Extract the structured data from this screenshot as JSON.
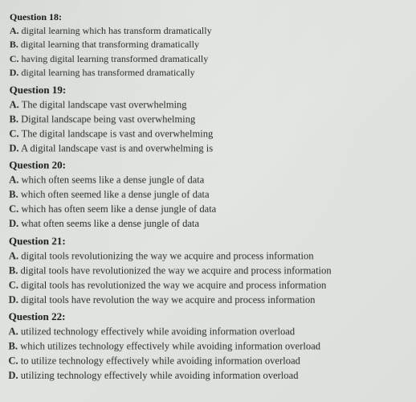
{
  "questions": [
    {
      "number": "Question 18:",
      "options": [
        {
          "label": "A.",
          "text": "digital learning which has transform dramatically"
        },
        {
          "label": "B.",
          "text": "digital learning that transforming dramatically"
        },
        {
          "label": "C.",
          "text": "having digital learning transformed dramatically"
        },
        {
          "label": "D.",
          "text": "digital learning has transformed dramatically"
        }
      ]
    },
    {
      "number": "Question 19:",
      "options": [
        {
          "label": "A.",
          "text": "The digital landscape vast overwhelming"
        },
        {
          "label": "B.",
          "text": "Digital landscape being vast overwhelming"
        },
        {
          "label": "C.",
          "text": "The digital landscape is vast and overwhelming"
        },
        {
          "label": "D.",
          "text": "A digital landscape vast is and overwhelming is"
        }
      ]
    },
    {
      "number": "Question 20:",
      "options": [
        {
          "label": "A.",
          "text": "which often seems like a dense jungle of data"
        },
        {
          "label": "B.",
          "text": "which often seemed like a dense jungle of data"
        },
        {
          "label": "C.",
          "text": "which has often seem like a dense jungle of data"
        },
        {
          "label": "D.",
          "text": "what often seems like a dense jungle of data"
        }
      ]
    },
    {
      "number": "Question 21:",
      "options": [
        {
          "label": "A.",
          "text": "digital tools revolutionizing the way we acquire and process information"
        },
        {
          "label": "B.",
          "text": "digital tools have revolutionized the way we acquire and process information"
        },
        {
          "label": "C.",
          "text": "digital tools has revolutionized the way we acquire and process information"
        },
        {
          "label": "D.",
          "text": "digital tools have revolution the way we acquire and process information"
        }
      ]
    },
    {
      "number": "Question 22:",
      "options": [
        {
          "label": "A.",
          "text": "utilized technology effectively while avoiding information overload"
        },
        {
          "label": "B.",
          "text": "which utilizes technology effectively while avoiding information overload"
        },
        {
          "label": "C.",
          "text": "to utilize technology effectively while avoiding information overload"
        },
        {
          "label": "D.",
          "text": "utilizing technology effectively while avoiding information overload"
        }
      ]
    }
  ]
}
